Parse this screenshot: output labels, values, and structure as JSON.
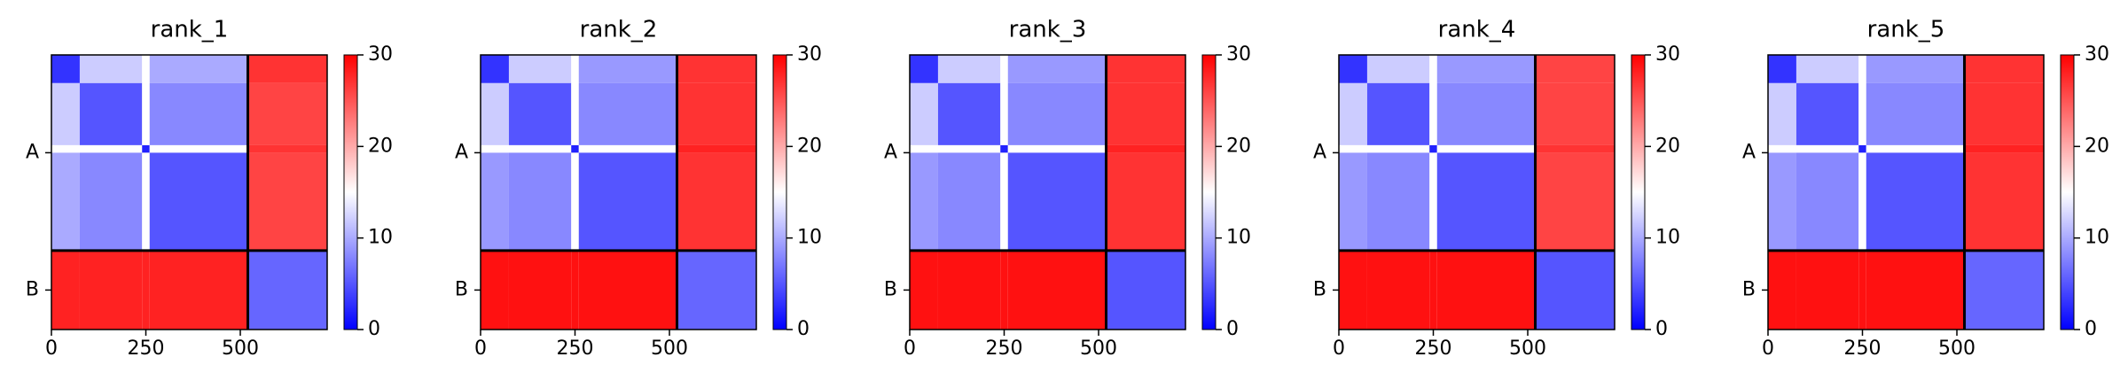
{
  "chart_data": [
    {
      "type": "heatmap",
      "title": "rank_1",
      "edges": [
        0,
        75,
        240,
        260,
        520,
        730
      ],
      "values": [
        [
          3,
          12,
          15,
          10,
          27
        ],
        [
          12,
          5,
          15,
          8,
          26
        ],
        [
          15,
          15,
          2,
          15,
          27
        ],
        [
          10,
          8,
          15,
          5,
          26
        ],
        [
          28,
          28,
          28,
          28,
          6
        ]
      ],
      "xlim": [
        0,
        730
      ],
      "ylim": [
        730,
        0
      ],
      "xticks": [
        0,
        250,
        500
      ],
      "yticks": [
        {
          "value": 260,
          "label": "A"
        },
        {
          "value": 625,
          "label": "B"
        }
      ],
      "boundaries": [
        520
      ],
      "clim": [
        0,
        30
      ],
      "cticks": [
        0,
        10,
        20,
        30
      ],
      "cmap": [
        "#0000ff",
        "#ffffff",
        "#ff0000"
      ]
    },
    {
      "type": "heatmap",
      "title": "rank_2",
      "edges": [
        0,
        75,
        240,
        260,
        520,
        730
      ],
      "values": [
        [
          3,
          12,
          15,
          9,
          27
        ],
        [
          12,
          5,
          15,
          8,
          27
        ],
        [
          15,
          15,
          2,
          15,
          28
        ],
        [
          9,
          8,
          15,
          5,
          27
        ],
        [
          29,
          29,
          29,
          29,
          6
        ]
      ],
      "xlim": [
        0,
        730
      ],
      "ylim": [
        730,
        0
      ],
      "xticks": [
        0,
        250,
        500
      ],
      "yticks": [
        {
          "value": 260,
          "label": "A"
        },
        {
          "value": 625,
          "label": "B"
        }
      ],
      "boundaries": [
        520
      ],
      "clim": [
        0,
        30
      ],
      "cticks": [
        0,
        10,
        20,
        30
      ],
      "cmap": [
        "#0000ff",
        "#ffffff",
        "#ff0000"
      ]
    },
    {
      "type": "heatmap",
      "title": "rank_3",
      "edges": [
        0,
        75,
        240,
        260,
        520,
        730
      ],
      "values": [
        [
          3,
          12,
          15,
          9,
          27
        ],
        [
          12,
          5,
          15,
          8,
          27
        ],
        [
          15,
          15,
          2,
          15,
          28
        ],
        [
          9,
          8,
          15,
          5,
          27
        ],
        [
          29,
          29,
          29,
          29,
          5
        ]
      ],
      "xlim": [
        0,
        730
      ],
      "ylim": [
        730,
        0
      ],
      "xticks": [
        0,
        250,
        500
      ],
      "yticks": [
        {
          "value": 260,
          "label": "A"
        },
        {
          "value": 625,
          "label": "B"
        }
      ],
      "boundaries": [
        520
      ],
      "clim": [
        0,
        30
      ],
      "cticks": [
        0,
        10,
        20,
        30
      ],
      "cmap": [
        "#0000ff",
        "#ffffff",
        "#ff0000"
      ]
    },
    {
      "type": "heatmap",
      "title": "rank_4",
      "edges": [
        0,
        75,
        240,
        260,
        520,
        730
      ],
      "values": [
        [
          3,
          12,
          15,
          9,
          26
        ],
        [
          12,
          5,
          15,
          8,
          26
        ],
        [
          15,
          15,
          2,
          15,
          27
        ],
        [
          9,
          8,
          15,
          5,
          26
        ],
        [
          29,
          29,
          29,
          29,
          5
        ]
      ],
      "xlim": [
        0,
        730
      ],
      "ylim": [
        730,
        0
      ],
      "xticks": [
        0,
        250,
        500
      ],
      "yticks": [
        {
          "value": 260,
          "label": "A"
        },
        {
          "value": 625,
          "label": "B"
        }
      ],
      "boundaries": [
        520
      ],
      "clim": [
        0,
        30
      ],
      "cticks": [
        0,
        10,
        20,
        30
      ],
      "cmap": [
        "#0000ff",
        "#ffffff",
        "#ff0000"
      ]
    },
    {
      "type": "heatmap",
      "title": "rank_5",
      "edges": [
        0,
        75,
        240,
        260,
        520,
        730
      ],
      "values": [
        [
          3,
          12,
          15,
          9,
          27
        ],
        [
          12,
          5,
          15,
          8,
          27
        ],
        [
          15,
          15,
          2,
          15,
          28
        ],
        [
          9,
          8,
          15,
          5,
          27
        ],
        [
          29,
          29,
          29,
          29,
          6
        ]
      ],
      "xlim": [
        0,
        730
      ],
      "ylim": [
        730,
        0
      ],
      "xticks": [
        0,
        250,
        500
      ],
      "yticks": [
        {
          "value": 260,
          "label": "A"
        },
        {
          "value": 625,
          "label": "B"
        }
      ],
      "boundaries": [
        520
      ],
      "clim": [
        0,
        30
      ],
      "cticks": [
        0,
        10,
        20,
        30
      ],
      "cmap": [
        "#0000ff",
        "#ffffff",
        "#ff0000"
      ]
    }
  ]
}
